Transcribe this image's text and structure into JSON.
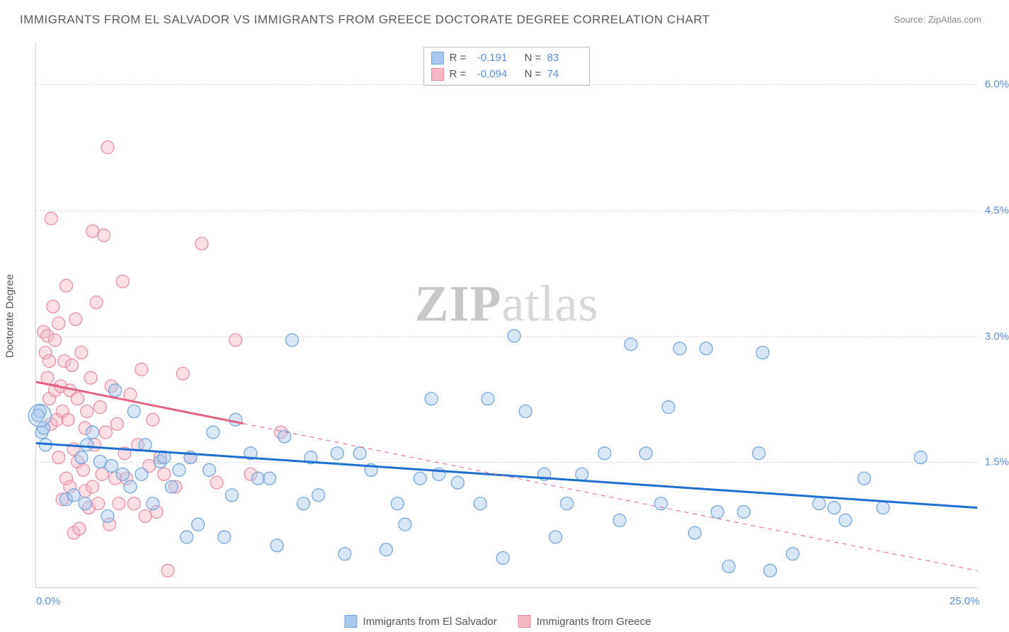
{
  "title": "IMMIGRANTS FROM EL SALVADOR VS IMMIGRANTS FROM GREECE DOCTORATE DEGREE CORRELATION CHART",
  "source_label": "Source:",
  "source_name": "ZipAtlas.com",
  "ylabel": "Doctorate Degree",
  "watermark_a": "ZIP",
  "watermark_b": "atlas",
  "chart": {
    "type": "scatter",
    "xlim": [
      0,
      25
    ],
    "ylim": [
      0,
      6.5
    ],
    "xticks": [
      {
        "v": 0,
        "label": "0.0%"
      },
      {
        "v": 25,
        "label": "25.0%"
      }
    ],
    "yticks": [
      {
        "v": 1.5,
        "label": "1.5%"
      },
      {
        "v": 3.0,
        "label": "3.0%"
      },
      {
        "v": 4.5,
        "label": "4.5%"
      },
      {
        "v": 6.0,
        "label": "6.0%"
      }
    ],
    "grid_color": "#dddddd",
    "background_color": "#ffffff",
    "marker_radius": 9,
    "marker_opacity": 0.45,
    "line_width_solid": 3,
    "line_width_dash": 1,
    "series": [
      {
        "name": "Immigrants from El Salvador",
        "color_fill": "#a9c8ec",
        "color_stroke": "#6fa3db",
        "line_color": "#1f6fd1",
        "R": "-0.191",
        "N": "83",
        "trend": {
          "x1": 0,
          "y1": 1.72,
          "x2": 25,
          "y2": 0.95,
          "solid_until_x": 25
        },
        "points": [
          [
            0.1,
            2.1
          ],
          [
            0.15,
            1.85
          ],
          [
            0.2,
            1.9
          ],
          [
            0.05,
            2.05
          ],
          [
            0.25,
            1.7
          ],
          [
            0.8,
            1.05
          ],
          [
            1.0,
            1.1
          ],
          [
            1.2,
            1.55
          ],
          [
            1.3,
            1.0
          ],
          [
            1.35,
            1.7
          ],
          [
            1.5,
            1.85
          ],
          [
            1.7,
            1.5
          ],
          [
            1.9,
            0.85
          ],
          [
            2.0,
            1.45
          ],
          [
            2.1,
            2.35
          ],
          [
            2.3,
            1.35
          ],
          [
            2.5,
            1.2
          ],
          [
            2.6,
            2.1
          ],
          [
            2.8,
            1.35
          ],
          [
            2.9,
            1.7
          ],
          [
            3.1,
            1.0
          ],
          [
            3.3,
            1.5
          ],
          [
            3.4,
            1.55
          ],
          [
            3.6,
            1.2
          ],
          [
            3.8,
            1.4
          ],
          [
            4.0,
            0.6
          ],
          [
            4.1,
            1.55
          ],
          [
            4.3,
            0.75
          ],
          [
            4.6,
            1.4
          ],
          [
            4.7,
            1.85
          ],
          [
            5.0,
            0.6
          ],
          [
            5.2,
            1.1
          ],
          [
            5.3,
            2.0
          ],
          [
            5.7,
            1.6
          ],
          [
            5.9,
            1.3
          ],
          [
            6.2,
            1.3
          ],
          [
            6.4,
            0.5
          ],
          [
            6.6,
            1.8
          ],
          [
            6.8,
            2.95
          ],
          [
            7.1,
            1.0
          ],
          [
            7.3,
            1.55
          ],
          [
            7.5,
            1.1
          ],
          [
            8.0,
            1.6
          ],
          [
            8.2,
            0.4
          ],
          [
            8.6,
            1.6
          ],
          [
            8.9,
            1.4
          ],
          [
            9.3,
            0.45
          ],
          [
            9.6,
            1.0
          ],
          [
            9.8,
            0.75
          ],
          [
            10.2,
            1.3
          ],
          [
            10.5,
            2.25
          ],
          [
            10.7,
            1.35
          ],
          [
            11.2,
            1.25
          ],
          [
            11.8,
            1.0
          ],
          [
            12.0,
            2.25
          ],
          [
            12.4,
            0.35
          ],
          [
            12.7,
            3.0
          ],
          [
            13.0,
            2.1
          ],
          [
            13.5,
            1.35
          ],
          [
            13.8,
            0.6
          ],
          [
            14.1,
            1.0
          ],
          [
            14.5,
            1.35
          ],
          [
            15.1,
            1.6
          ],
          [
            15.5,
            0.8
          ],
          [
            15.8,
            2.9
          ],
          [
            16.2,
            1.6
          ],
          [
            16.6,
            1.0
          ],
          [
            16.8,
            2.15
          ],
          [
            17.1,
            2.85
          ],
          [
            17.5,
            0.65
          ],
          [
            17.8,
            2.85
          ],
          [
            18.1,
            0.9
          ],
          [
            18.4,
            0.25
          ],
          [
            18.8,
            0.9
          ],
          [
            19.2,
            1.6
          ],
          [
            19.3,
            2.8
          ],
          [
            19.5,
            0.2
          ],
          [
            20.1,
            0.4
          ],
          [
            20.8,
            1.0
          ],
          [
            21.2,
            0.95
          ],
          [
            21.5,
            0.8
          ],
          [
            22.0,
            1.3
          ],
          [
            22.5,
            0.95
          ],
          [
            23.5,
            1.55
          ]
        ]
      },
      {
        "name": "Immigrants from Greece",
        "color_fill": "#f5b9c6",
        "color_stroke": "#e98ba0",
        "line_color": "#e26284",
        "R": "-0.094",
        "N": "74",
        "trend": {
          "x1": 0,
          "y1": 2.45,
          "x2": 25,
          "y2": 0.2,
          "solid_until_x": 5.5
        },
        "points": [
          [
            0.2,
            3.05
          ],
          [
            0.25,
            2.8
          ],
          [
            0.3,
            3.0
          ],
          [
            0.3,
            2.5
          ],
          [
            0.35,
            2.7
          ],
          [
            0.35,
            2.25
          ],
          [
            0.4,
            4.4
          ],
          [
            0.4,
            1.95
          ],
          [
            0.45,
            3.35
          ],
          [
            0.5,
            2.35
          ],
          [
            0.5,
            2.95
          ],
          [
            0.55,
            2.0
          ],
          [
            0.6,
            3.15
          ],
          [
            0.6,
            1.55
          ],
          [
            0.65,
            2.4
          ],
          [
            0.7,
            2.1
          ],
          [
            0.7,
            1.05
          ],
          [
            0.75,
            2.7
          ],
          [
            0.8,
            1.3
          ],
          [
            0.8,
            3.6
          ],
          [
            0.85,
            2.0
          ],
          [
            0.9,
            1.2
          ],
          [
            0.9,
            2.35
          ],
          [
            0.95,
            2.65
          ],
          [
            1.0,
            1.65
          ],
          [
            1.0,
            0.65
          ],
          [
            1.05,
            3.2
          ],
          [
            1.1,
            1.5
          ],
          [
            1.1,
            2.25
          ],
          [
            1.15,
            0.7
          ],
          [
            1.2,
            2.8
          ],
          [
            1.25,
            1.4
          ],
          [
            1.3,
            1.9
          ],
          [
            1.3,
            1.15
          ],
          [
            1.35,
            2.1
          ],
          [
            1.4,
            0.95
          ],
          [
            1.45,
            2.5
          ],
          [
            1.5,
            4.25
          ],
          [
            1.5,
            1.2
          ],
          [
            1.55,
            1.7
          ],
          [
            1.6,
            3.4
          ],
          [
            1.65,
            1.0
          ],
          [
            1.7,
            2.15
          ],
          [
            1.75,
            1.35
          ],
          [
            1.8,
            4.2
          ],
          [
            1.85,
            1.85
          ],
          [
            1.9,
            5.25
          ],
          [
            1.95,
            0.75
          ],
          [
            2.0,
            2.4
          ],
          [
            2.1,
            1.3
          ],
          [
            2.15,
            1.95
          ],
          [
            2.2,
            1.0
          ],
          [
            2.3,
            3.65
          ],
          [
            2.35,
            1.6
          ],
          [
            2.4,
            1.3
          ],
          [
            2.5,
            2.3
          ],
          [
            2.6,
            1.0
          ],
          [
            2.7,
            1.7
          ],
          [
            2.8,
            2.6
          ],
          [
            2.9,
            0.85
          ],
          [
            3.0,
            1.45
          ],
          [
            3.1,
            2.0
          ],
          [
            3.2,
            0.9
          ],
          [
            3.3,
            1.55
          ],
          [
            3.4,
            1.35
          ],
          [
            3.5,
            0.2
          ],
          [
            3.7,
            1.2
          ],
          [
            3.9,
            2.55
          ],
          [
            4.1,
            1.55
          ],
          [
            4.4,
            4.1
          ],
          [
            4.8,
            1.25
          ],
          [
            5.3,
            2.95
          ],
          [
            5.7,
            1.35
          ],
          [
            6.5,
            1.85
          ]
        ]
      }
    ]
  },
  "legend_top_labels": {
    "R": "R =",
    "N": "N ="
  },
  "legend_bottom": [
    {
      "series_idx": 0
    },
    {
      "series_idx": 1
    }
  ]
}
